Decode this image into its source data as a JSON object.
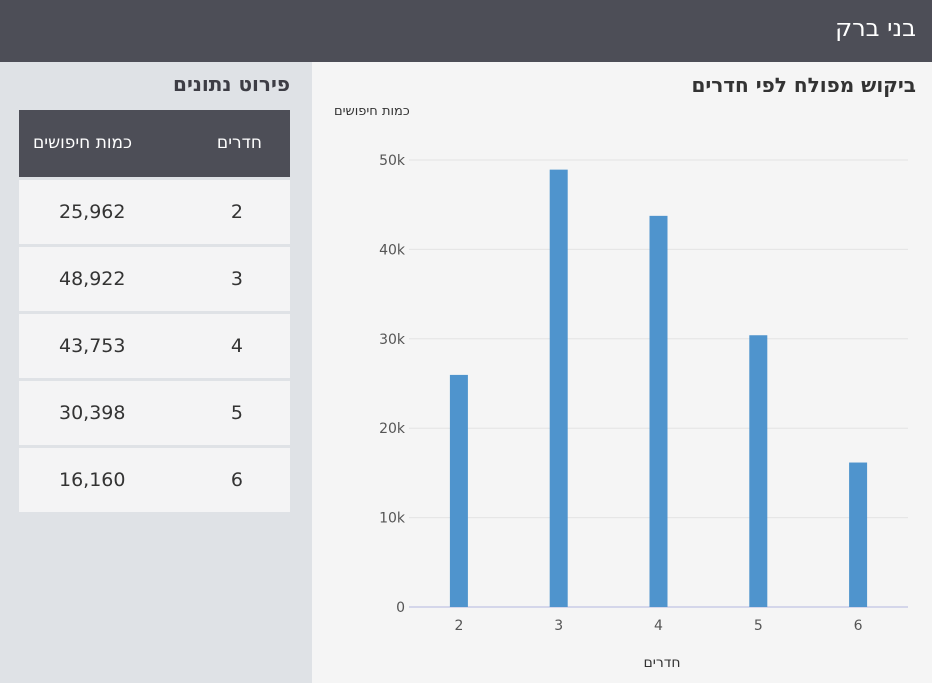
{
  "header": {
    "title": "בני ברק"
  },
  "sidebar": {
    "heading": "פירוט נתונים",
    "table": {
      "col_rooms": "חדרים",
      "col_count": "כמות חיפושים",
      "rows": [
        {
          "rooms": "2",
          "count": "25,962"
        },
        {
          "rooms": "3",
          "count": "48,922"
        },
        {
          "rooms": "4",
          "count": "43,753"
        },
        {
          "rooms": "5",
          "count": "30,398"
        },
        {
          "rooms": "6",
          "count": "16,160"
        }
      ]
    }
  },
  "chart_data": {
    "type": "bar",
    "title": "ביקוש מפולח לפי חדרים",
    "ylabel": "כמות חיפושים",
    "xlabel": "חדרים",
    "categories": [
      "2",
      "3",
      "4",
      "5",
      "6"
    ],
    "values": [
      25962,
      48922,
      43753,
      30398,
      16160
    ],
    "ylim": [
      0,
      50000
    ],
    "yticks": [
      0,
      10000,
      20000,
      30000,
      40000,
      50000
    ],
    "ytick_labels": [
      "0",
      "10k",
      "20k",
      "30k",
      "40k",
      "50k"
    ],
    "grid": true,
    "colors": {
      "bar": "#4f94cd",
      "grid": "#e3e3e3",
      "axis": "#c9cbe6"
    }
  }
}
